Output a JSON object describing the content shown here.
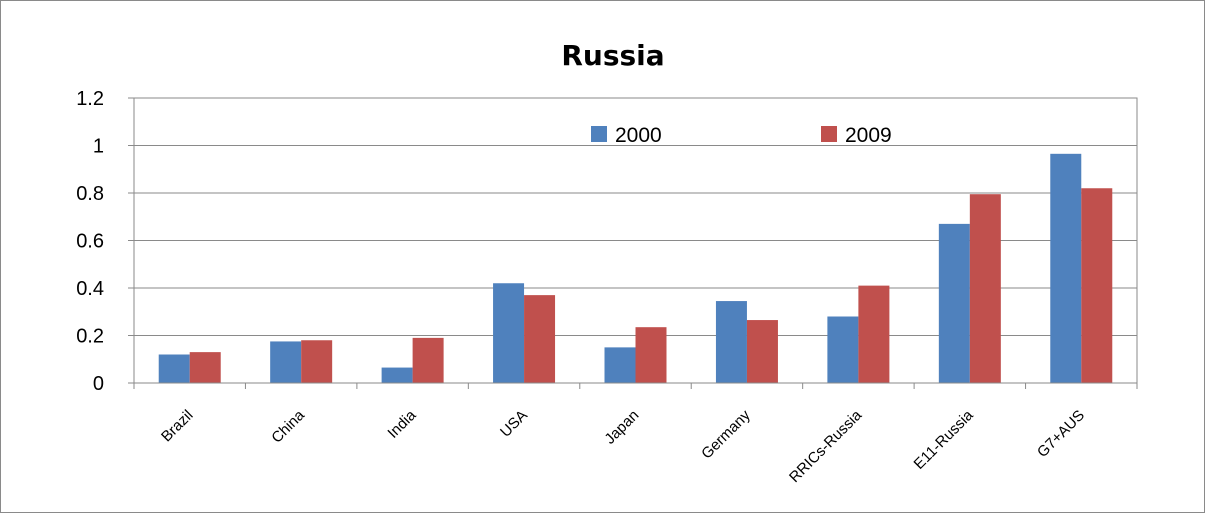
{
  "chart_data": {
    "type": "bar",
    "title": "Russia",
    "xlabel": "",
    "ylabel": "",
    "categories": [
      "Brazil",
      "China",
      "India",
      "USA",
      "Japan",
      "Germany",
      "RRICs-Russia",
      "E11-Russia",
      "G7+AUS"
    ],
    "series": [
      {
        "name": "2000",
        "color": "#4F81BD",
        "values": [
          0.12,
          0.175,
          0.065,
          0.42,
          0.15,
          0.345,
          0.28,
          0.67,
          0.965
        ]
      },
      {
        "name": "2009",
        "color": "#C0504D",
        "values": [
          0.13,
          0.18,
          0.19,
          0.37,
          0.235,
          0.265,
          0.41,
          0.795,
          0.82
        ]
      }
    ],
    "ylim": [
      0,
      1.2
    ],
    "yticks": [
      "0",
      "0.2",
      "0.4",
      "0.6",
      "0.8",
      "1",
      "1.2"
    ],
    "grid": true,
    "legend_position": "top-right"
  }
}
